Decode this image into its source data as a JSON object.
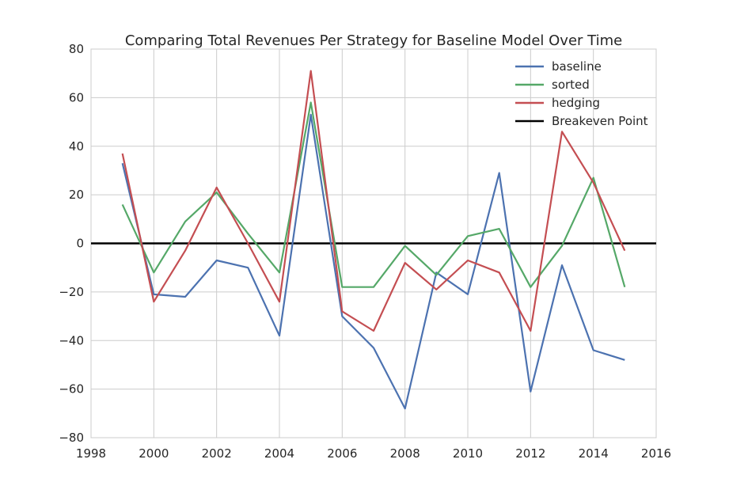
{
  "chart_data": {
    "type": "line",
    "title": "Comparing Total Revenues Per Strategy for Baseline Model Over Time",
    "xlabel": "",
    "ylabel": "",
    "xlim": [
      1998,
      2016
    ],
    "ylim": [
      -80,
      80
    ],
    "xticks": [
      1998,
      2000,
      2002,
      2004,
      2006,
      2008,
      2010,
      2012,
      2014,
      2016
    ],
    "yticks": [
      -80,
      -60,
      -40,
      -20,
      0,
      20,
      40,
      60,
      80
    ],
    "grid": true,
    "legend_position": "top-right",
    "x": [
      1999,
      2000,
      2001,
      2002,
      2003,
      2004,
      2005,
      2006,
      2007,
      2008,
      2009,
      2010,
      2011,
      2012,
      2013,
      2014,
      2015
    ],
    "series": [
      {
        "name": "baseline",
        "color": "#4c72b0",
        "values": [
          33,
          -21,
          -22,
          -7,
          -10,
          -38,
          53,
          -30,
          -43,
          -68,
          -12,
          -21,
          29,
          -61,
          -9,
          -44,
          -48
        ]
      },
      {
        "name": "sorted",
        "color": "#55a868",
        "values": [
          16,
          -12,
          9,
          21,
          4,
          -12,
          58,
          -18,
          -18,
          -1,
          -13,
          3,
          6,
          -18,
          -1,
          27,
          -18
        ]
      },
      {
        "name": "hedging",
        "color": "#c44e52",
        "values": [
          37,
          -24,
          -3,
          23,
          0,
          -24,
          71,
          -28,
          -36,
          -8,
          -19,
          -7,
          -12,
          -36,
          46,
          25,
          -3
        ]
      }
    ],
    "reference_lines": [
      {
        "name": "Breakeven Point",
        "y": 0,
        "color": "#000000"
      }
    ]
  }
}
